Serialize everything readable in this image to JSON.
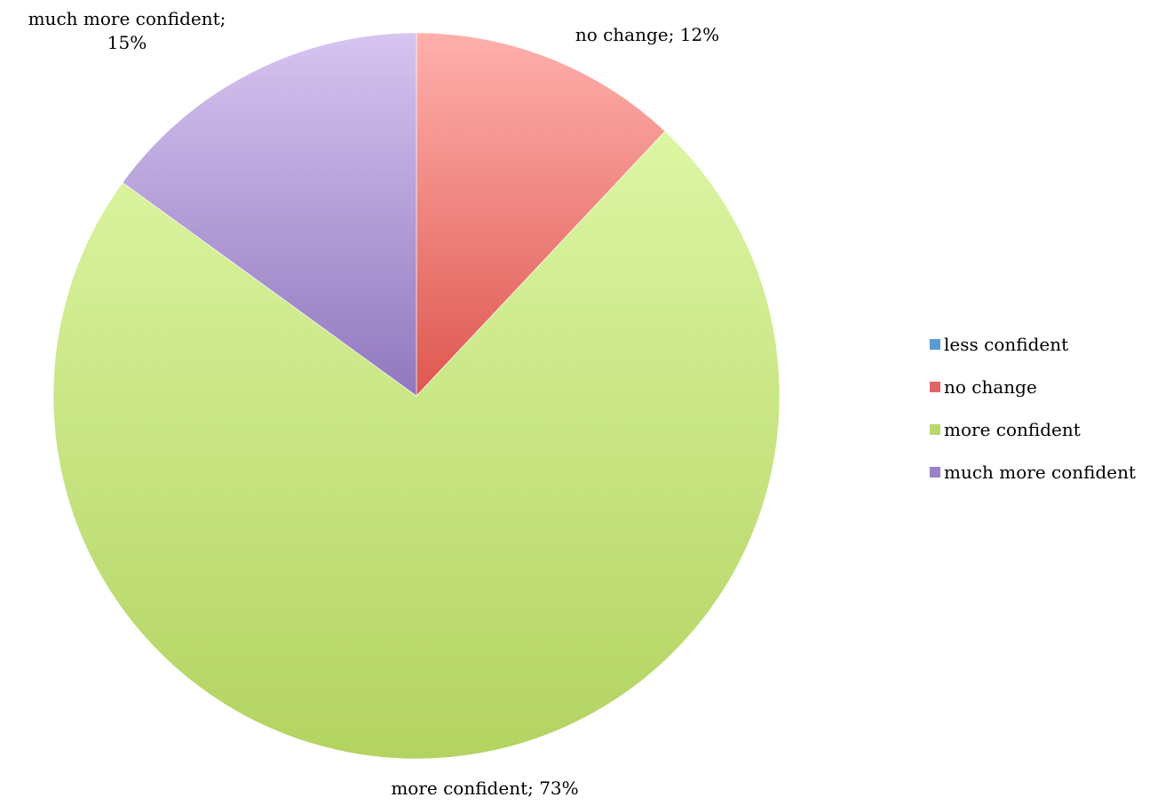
{
  "chart_data": {
    "type": "pie",
    "categories": [
      "less confident",
      "no change",
      "more confident",
      "much more confident"
    ],
    "values": [
      0,
      12,
      73,
      15
    ],
    "unit": "%",
    "data_labels": [
      null,
      {
        "lines": [
          "no change; 12%"
        ]
      },
      {
        "lines": [
          "more confident; 73%"
        ]
      },
      {
        "lines": [
          "much more confident;",
          "15%"
        ]
      }
    ],
    "legend": {
      "placement": "right",
      "entries": [
        "less confident",
        "no change",
        "more confident",
        "much more confident"
      ]
    },
    "colors": {
      "less confident": {
        "top": "#a9cdf2",
        "bottom": "#4f8fd6"
      },
      "no change": {
        "top": "#ffb0ac",
        "bottom": "#de5750"
      },
      "more confident": {
        "top": "#e2fbad",
        "bottom": "#b3d361"
      },
      "much more confident": {
        "top": "#d6c4f0",
        "bottom": "#9178be"
      }
    },
    "legend_swatch_colors": [
      "#5b9bd5",
      "#e06666",
      "#b9d86a",
      "#9a82c6"
    ],
    "start_angle_deg": 0,
    "direction": "clockwise",
    "grid": false
  }
}
